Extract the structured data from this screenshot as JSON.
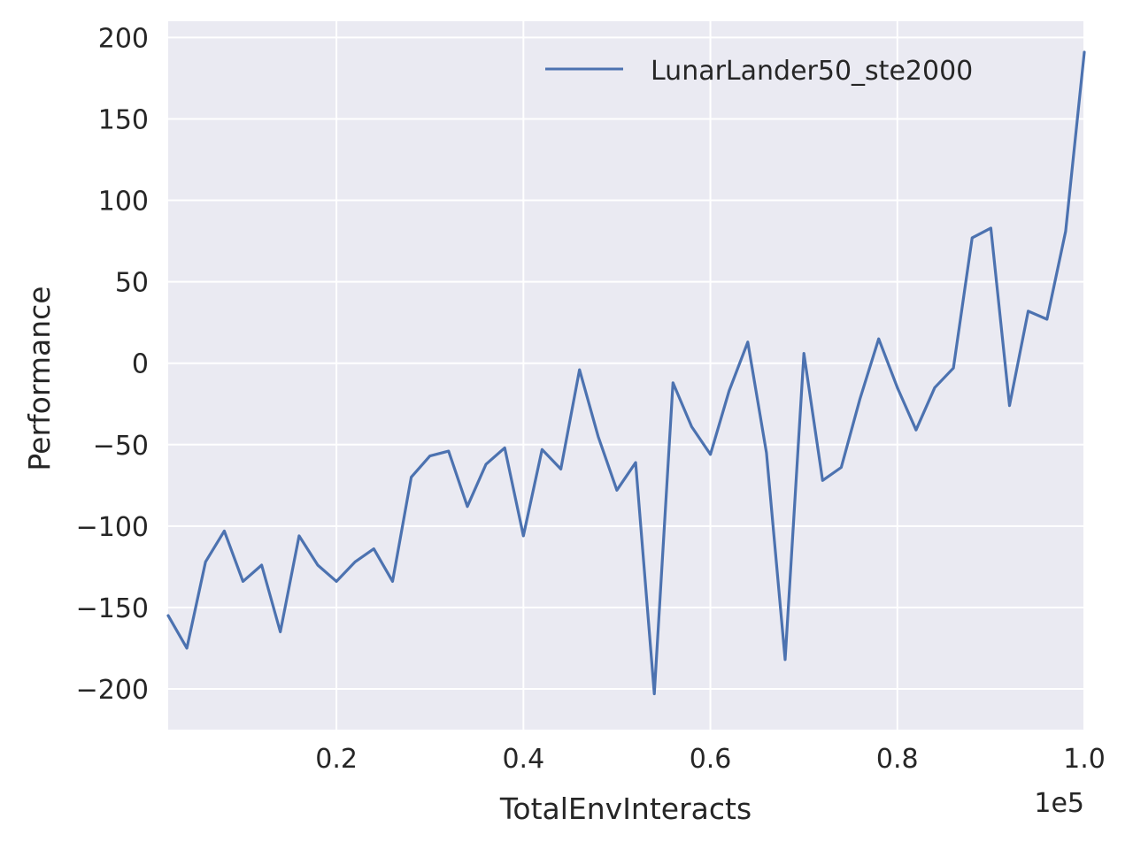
{
  "chart_data": {
    "type": "line",
    "xlabel": "TotalEnvInteracts",
    "ylabel": "Performance",
    "x_offset_label": "1e5",
    "xlim": [
      2000,
      100000
    ],
    "ylim": [
      -225,
      210
    ],
    "x_ticks": [
      20000,
      40000,
      60000,
      80000,
      100000
    ],
    "x_tick_labels": [
      "0.2",
      "0.4",
      "0.6",
      "0.8",
      "1.0"
    ],
    "y_ticks": [
      -200,
      -150,
      -100,
      -50,
      0,
      50,
      100,
      150,
      200
    ],
    "y_tick_labels": [
      "−200",
      "−150",
      "−100",
      "−50",
      "0",
      "50",
      "100",
      "150",
      "200"
    ],
    "grid": true,
    "legend_position": "top-right",
    "colors": {
      "plot_bg": "#eaeaf2",
      "grid": "#ffffff",
      "series": "#4c72b0",
      "text": "#262626"
    },
    "series": [
      {
        "name": "LunarLander50_ste2000",
        "x": [
          2000,
          4000,
          6000,
          8000,
          10000,
          12000,
          14000,
          16000,
          18000,
          20000,
          22000,
          24000,
          26000,
          28000,
          30000,
          32000,
          34000,
          36000,
          38000,
          40000,
          42000,
          44000,
          46000,
          48000,
          50000,
          52000,
          54000,
          56000,
          58000,
          60000,
          62000,
          64000,
          66000,
          68000,
          70000,
          72000,
          74000,
          76000,
          78000,
          80000,
          82000,
          84000,
          86000,
          88000,
          90000,
          92000,
          94000,
          96000,
          98000,
          100000
        ],
        "y": [
          -155,
          -175,
          -122,
          -103,
          -134,
          -124,
          -165,
          -106,
          -124,
          -134,
          -122,
          -114,
          -134,
          -70,
          -57,
          -54,
          -88,
          -62,
          -52,
          -106,
          -53,
          -65,
          -4,
          -45,
          -78,
          -61,
          -203,
          -12,
          -39,
          -56,
          -17,
          13,
          -55,
          -182,
          6,
          -72,
          -64,
          -22,
          15,
          -15,
          -41,
          -15,
          -3,
          77,
          83,
          -26,
          32,
          27,
          81,
          191
        ]
      }
    ]
  }
}
